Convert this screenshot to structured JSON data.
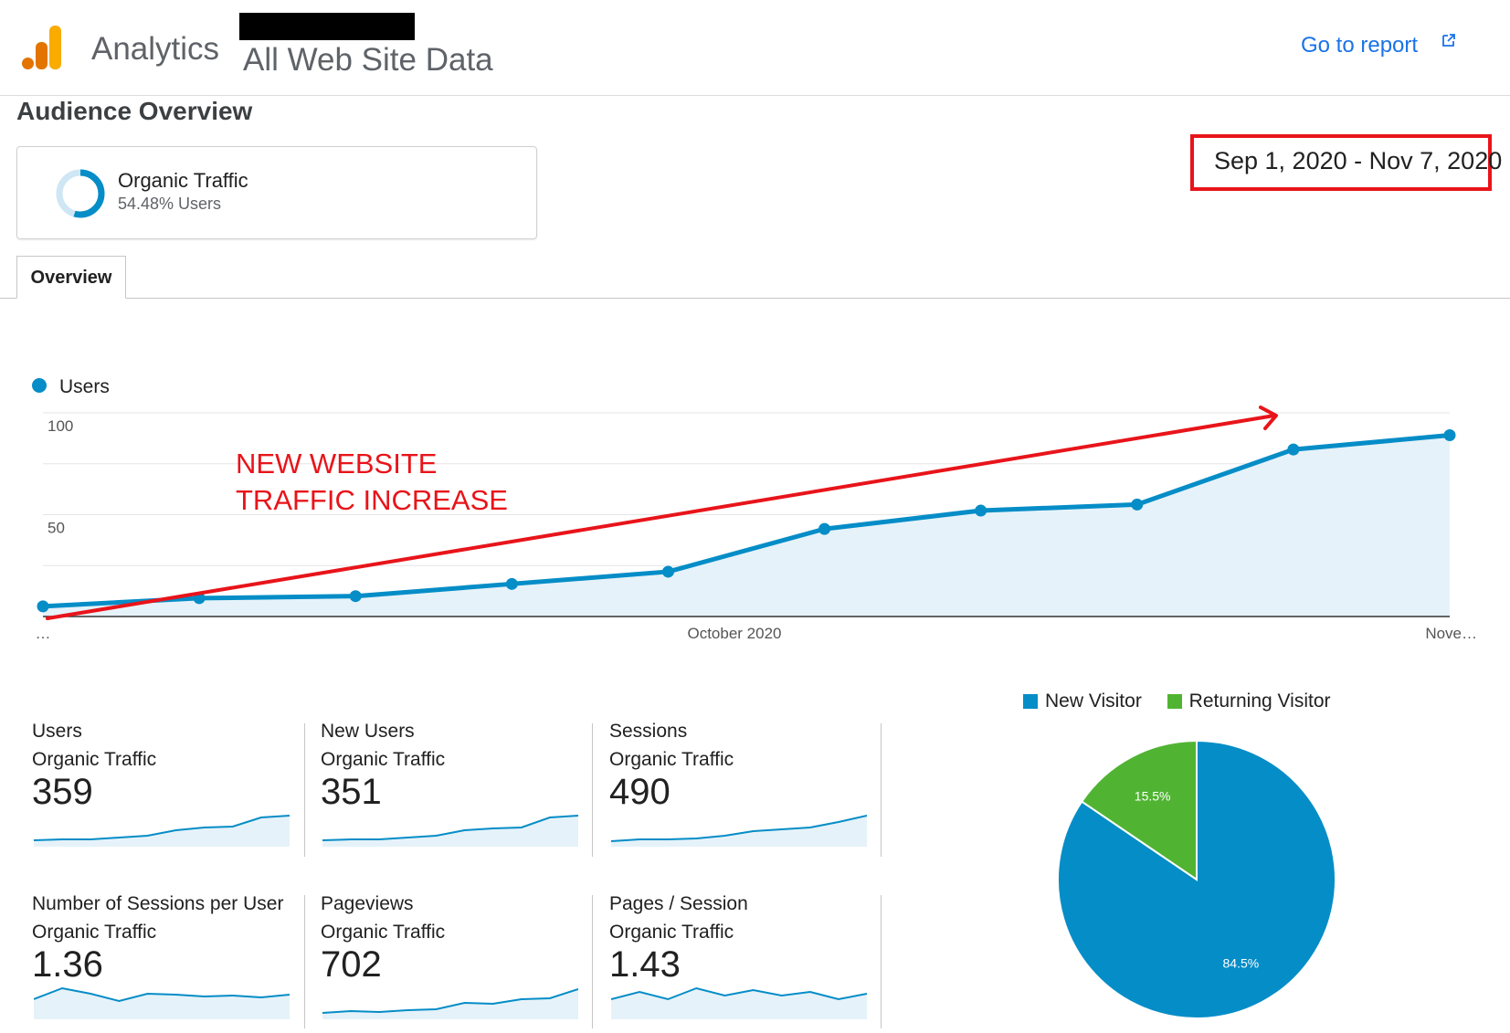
{
  "header": {
    "app_name": "Analytics",
    "property": "All Web Site Data",
    "go_report": "Go to report"
  },
  "page_title": "Audience Overview",
  "segment": {
    "name": "Organic Traffic",
    "sub": "54.48% Users",
    "fraction": 0.5448
  },
  "date_range": "Sep 1, 2020 - Nov 7, 2020",
  "tabs": [
    {
      "label": "Overview"
    }
  ],
  "colors": {
    "accent": "#058dc7",
    "area": "#e6f2f9",
    "returning": "#50b432",
    "annotation": "#e8141a",
    "link": "#1a73e8"
  },
  "chart_data": [
    {
      "type": "area",
      "legend": [
        "Users"
      ],
      "ylim": [
        0,
        100
      ],
      "y_ticks": [
        "100",
        "50"
      ],
      "x_tick_labels": [
        "…",
        "October 2020",
        "Nove…"
      ],
      "series": [
        {
          "name": "Users",
          "values": [
            5,
            9,
            10,
            16,
            22,
            43,
            52,
            55,
            82,
            89
          ]
        }
      ],
      "annotations": [
        "NEW WEBSITE",
        "TRAFFIC INCREASE"
      ]
    },
    {
      "type": "pie",
      "legend": [
        "New Visitor",
        "Returning Visitor"
      ],
      "slices": [
        {
          "name": "New Visitor",
          "value": 84.5,
          "label": "84.5%"
        },
        {
          "name": "Returning Visitor",
          "value": 15.5,
          "label": "15.5%"
        }
      ]
    }
  ],
  "metrics": [
    {
      "name": "Users",
      "segment": "Organic Traffic",
      "value": "359",
      "spark": [
        3,
        4,
        4,
        6,
        8,
        14,
        17,
        18,
        28,
        30
      ]
    },
    {
      "name": "New Users",
      "segment": "Organic Traffic",
      "value": "351",
      "spark": [
        3,
        4,
        4,
        6,
        8,
        14,
        16,
        17,
        28,
        30
      ]
    },
    {
      "name": "Sessions",
      "segment": "Organic Traffic",
      "value": "490",
      "spark": [
        2,
        4,
        4,
        5,
        8,
        13,
        15,
        17,
        23,
        30
      ]
    },
    {
      "name": "Number of Sessions per User",
      "segment": "Organic Traffic",
      "value": "1.36",
      "spark": [
        18,
        30,
        24,
        16,
        24,
        23,
        21,
        22,
        20,
        23
      ]
    },
    {
      "name": "Pageviews",
      "segment": "Organic Traffic",
      "value": "702",
      "spark": [
        3,
        5,
        4,
        6,
        7,
        14,
        13,
        18,
        19,
        29
      ]
    },
    {
      "name": "Pages / Session",
      "segment": "Organic Traffic",
      "value": "1.43",
      "spark": [
        18,
        26,
        18,
        30,
        22,
        28,
        22,
        26,
        18,
        24
      ]
    }
  ]
}
